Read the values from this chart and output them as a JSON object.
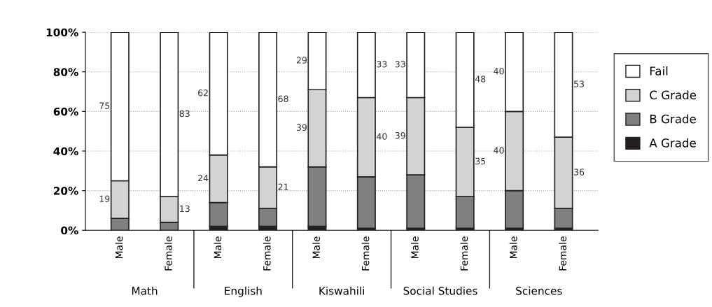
{
  "chart_data": {
    "type": "bar",
    "stacked": true,
    "categories": [
      "Male",
      "Female",
      "Male",
      "Female",
      "Male",
      "Female",
      "Male",
      "Female",
      "Male",
      "Female"
    ],
    "series": [
      {
        "name": "A Grade",
        "color": "#231f20",
        "values": [
          0,
          0,
          2,
          2,
          2,
          1,
          1,
          1,
          1,
          1
        ]
      },
      {
        "name": "B Grade",
        "color": "#808080",
        "values": [
          6,
          4,
          12,
          9,
          30,
          26,
          27,
          16,
          19,
          10
        ]
      },
      {
        "name": "C Grade",
        "color": "#d3d3d3",
        "values": [
          19,
          13,
          24,
          21,
          39,
          40,
          39,
          35,
          40,
          36
        ],
        "value_labels": [
          "19",
          "13",
          "24",
          "21",
          "39",
          "40",
          "39",
          "35",
          "40",
          "36"
        ]
      },
      {
        "name": "Fail",
        "color": "#ffffff",
        "values": [
          75,
          83,
          62,
          68,
          29,
          33,
          33,
          48,
          40,
          53
        ],
        "value_labels": [
          "75",
          "83",
          "62",
          "68",
          "29",
          "33",
          "33",
          "48",
          "40",
          "53"
        ]
      }
    ],
    "ylim": [
      0,
      100
    ],
    "yticks": [
      {
        "value": 0,
        "label": "0%"
      },
      {
        "value": 20,
        "label": "20%"
      },
      {
        "value": 40,
        "label": "40%"
      },
      {
        "value": 60,
        "label": "60%"
      },
      {
        "value": 80,
        "label": "80%"
      },
      {
        "value": 100,
        "label": "100%"
      }
    ],
    "grid": "y",
    "legend": "right",
    "annotations": [
      "Math",
      "English",
      "Kiswahili",
      "Social Studies",
      "Sciences"
    ]
  }
}
